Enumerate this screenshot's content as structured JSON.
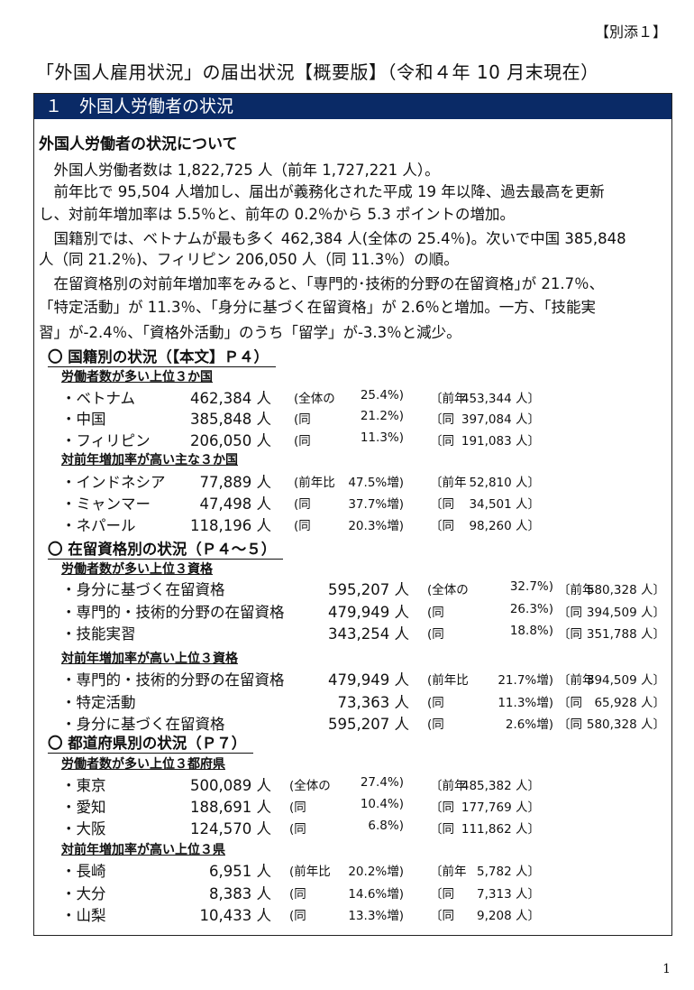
{
  "attachment": "【別添１】",
  "title": "「外国人雇用状況」の届出状況【概要版】（令和４年 10 月末現在）",
  "section_bar": "１　外国人労働者の状況",
  "intro_heading": "外国人労働者の状況について",
  "paragraph_lines": [
    "　外国人労働者数は 1,822,725 人（前年 1,727,221 人）。",
    "　前年比で 95,504 人増加し、届出が義務化された平成 19 年以降、過去最高を更新",
    "し、対前年増加率は 5.5％と、前年の 0.2％から 5.3 ポイントの増加。",
    "　国籍別では、ベトナムが最も多く 462,384 人(全体の 25.4％)。次いで中国 385,848",
    "人（同 21.2％)、フィリピン 206,050 人（同 11.3％）の順。",
    "　在留資格別の対前年増加率をみると、｢専門的･技術的分野の在留資格｣が 21.7％、",
    "「特定活動」が 11.3％、「身分に基づく在留資格」が 2.6％と増加。一方、「技能実",
    "習」が-2.4％、「資格外活動」のうち「留学」が-3.3％と減少。"
  ],
  "sections": [
    {
      "heading": "〇 国籍別の状況（【本文】Ｐ４）",
      "groups": [
        {
          "heading": "労働者数が多い上位３か国",
          "rows": [
            {
              "name": "・ベトナム",
              "count": "462,384 人",
              "p_label": "(全体の",
              "p_value": "25.4%)",
              "b_label": "〔前年",
              "b_value": "453,344 人〕"
            },
            {
              "name": "・中国",
              "count": "385,848 人",
              "p_label": "(同",
              "p_value": "21.2%)",
              "b_label": "〔同",
              "b_value": "397,084 人〕"
            },
            {
              "name": "・フィリピン",
              "count": "206,050 人",
              "p_label": "(同",
              "p_value": "11.3%)",
              "b_label": "〔同",
              "b_value": "191,083 人〕"
            }
          ]
        },
        {
          "heading": "対前年増加率が高い主な３か国",
          "rows": [
            {
              "name": "・インドネシア",
              "count": "77,889 人",
              "p_label": "(前年比",
              "p_value": "47.5%増)",
              "b_label": "〔前年",
              "b_value": "52,810 人〕"
            },
            {
              "name": "・ミャンマー",
              "count": "47,498 人",
              "p_label": "(同",
              "p_value": "37.7%増)",
              "b_label": "〔同",
              "b_value": "34,501 人〕"
            },
            {
              "name": "・ネパール",
              "count": "118,196 人",
              "p_label": "(同",
              "p_value": "20.3%増)",
              "b_label": "〔同",
              "b_value": "98,260 人〕"
            }
          ]
        }
      ]
    },
    {
      "heading": "〇 在留資格別の状況（Ｐ４～５）",
      "groups": [
        {
          "heading": "労働者数が多い上位３資格",
          "rows": [
            {
              "name": "・身分に基づく在留資格",
              "count": "595,207 人",
              "p_label": "(全体の",
              "p_value": "32.7%)",
              "b_label": "〔前年",
              "b_value": "580,328 人〕"
            },
            {
              "name": "・専門的・技術的分野の在留資格",
              "count": "479,949 人",
              "p_label": "(同",
              "p_value": "26.3%)",
              "b_label": "〔同",
              "b_value": "394,509 人〕"
            },
            {
              "name": "・技能実習",
              "count": "343,254 人",
              "p_label": "(同",
              "p_value": "18.8%)",
              "b_label": "〔同",
              "b_value": "351,788 人〕"
            }
          ]
        },
        {
          "heading": "対前年増加率が高い上位３資格",
          "rows": [
            {
              "name": "・専門的・技術的分野の在留資格",
              "count": "479,949 人",
              "p_label": "(前年比",
              "p_value": "21.7%増)",
              "b_label": "〔前年",
              "b_value": "394,509 人〕"
            },
            {
              "name": "・特定活動",
              "count": "73,363 人",
              "p_label": "(同",
              "p_value": "11.3%増)",
              "b_label": "〔同",
              "b_value": "65,928 人〕"
            },
            {
              "name": "・身分に基づく在留資格",
              "count": "595,207 人",
              "p_label": "(同",
              "p_value": "2.6%増)",
              "b_label": "〔同",
              "b_value": "580,328 人〕"
            }
          ]
        }
      ]
    },
    {
      "heading": "〇 都道府県別の状況（Ｐ７）",
      "groups": [
        {
          "heading": "労働者数が多い上位３都府県",
          "rows": [
            {
              "name": "・東京",
              "count": "500,089 人",
              "p_label": "(全体の",
              "p_value": "27.4%)",
              "b_label": "〔前年",
              "b_value": "485,382 人〕"
            },
            {
              "name": "・愛知",
              "count": "188,691 人",
              "p_label": "(同",
              "p_value": "10.4%)",
              "b_label": "〔同",
              "b_value": "177,769 人〕"
            },
            {
              "name": "・大阪",
              "count": "124,570 人",
              "p_label": "(同",
              "p_value": "6.8%)",
              "b_label": "〔同",
              "b_value": "111,862 人〕"
            }
          ]
        },
        {
          "heading": "対前年増加率が高い上位３県",
          "rows": [
            {
              "name": "・長崎",
              "count": "6,951 人",
              "p_label": "(前年比",
              "p_value": "20.2%増)",
              "b_label": "〔前年",
              "b_value": "5,782 人〕"
            },
            {
              "name": "・大分",
              "count": "8,383 人",
              "p_label": "(同",
              "p_value": "14.6%増)",
              "b_label": "〔同",
              "b_value": "7,313 人〕"
            },
            {
              "name": "・山梨",
              "count": "10,433 人",
              "p_label": "(同",
              "p_value": "13.3%増)",
              "b_label": "〔同",
              "b_value": "9,208 人〕"
            }
          ]
        }
      ]
    }
  ],
  "page_number": "1"
}
